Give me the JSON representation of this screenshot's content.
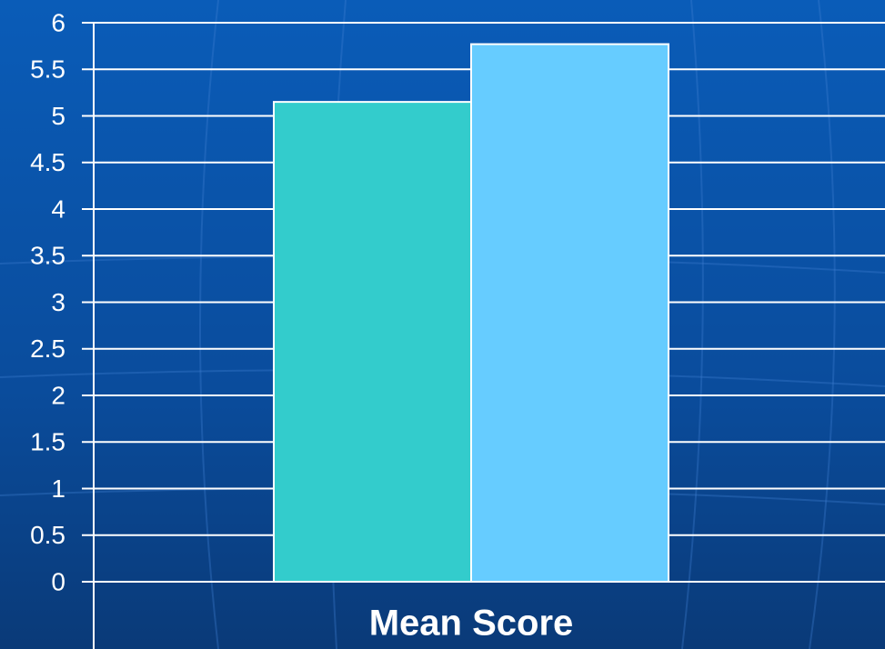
{
  "chart_data": {
    "type": "bar",
    "categories": [
      "Mean Score"
    ],
    "series": [
      {
        "color": "#33cccc",
        "values": [
          5.15
        ]
      },
      {
        "color": "#66ccff",
        "values": [
          5.77
        ]
      }
    ],
    "ylim": [
      0,
      6
    ],
    "yticks": [
      0,
      0.5,
      1,
      1.5,
      2,
      2.5,
      3,
      3.5,
      4,
      4.5,
      5,
      5.5,
      6
    ],
    "grid": true
  }
}
